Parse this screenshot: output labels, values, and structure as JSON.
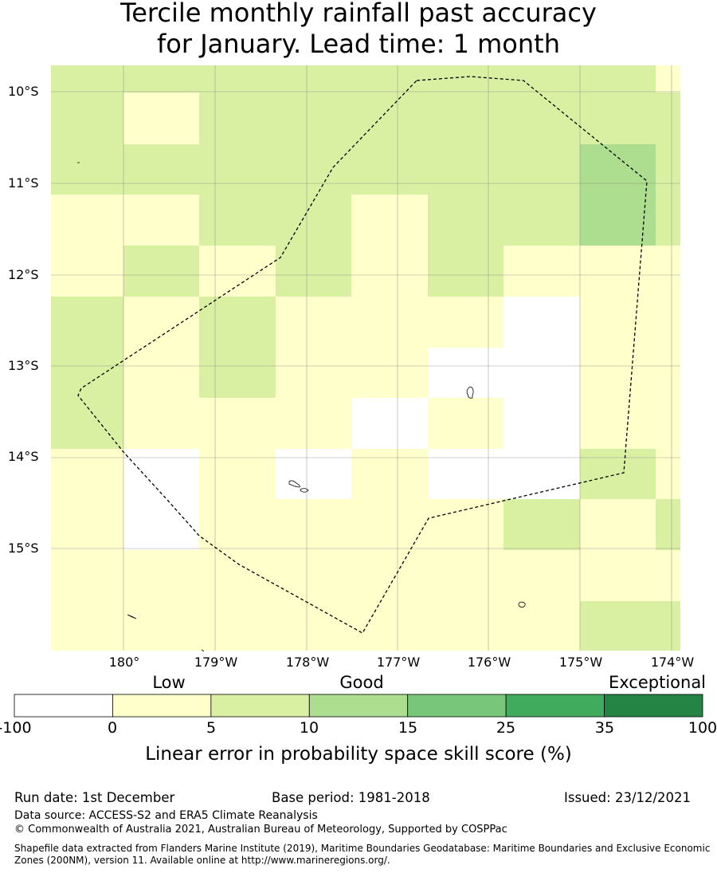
{
  "title": {
    "line1": "Tercile monthly rainfall past accuracy",
    "line2": "for January. Lead time: 1 month"
  },
  "map": {
    "lat_labels": [
      "10°S",
      "11°S",
      "12°S",
      "13°S",
      "14°S",
      "15°S"
    ],
    "lon_labels": [
      "180°",
      "179°W",
      "178°W",
      "177°W",
      "176°W",
      "175°W",
      "174°W"
    ],
    "boundary_name": "Maritime boundary (EEZ) outline"
  },
  "colorbar": {
    "category_labels": [
      "Low",
      "Good",
      "Exceptional"
    ],
    "tick_labels": [
      "-100",
      "0",
      "5",
      "10",
      "15",
      "25",
      "35",
      "100"
    ],
    "colors": [
      "#ffffff",
      "#ffffcc",
      "#d9f0a3",
      "#addd8e",
      "#78c679",
      "#41ab5d",
      "#238443"
    ],
    "label": "Linear error in probability space skill score (%)"
  },
  "footer": {
    "run_date": "Run date: 1st December",
    "base_period": "Base period: 1981-2018",
    "issued": "Issued: 23/12/2021",
    "data_source": "Data source: ACCESS-S2 and ERA5 Climate Reanalysis",
    "copyright": "© Commonwealth of Australia 2021, Australian Bureau of Meteorology, Supported by COSPPac",
    "shapefile_line1": "Shapefile data extracted from Flanders Marine Institute (2019), Maritime Boundaries Geodatabase: Maritime Boundaries and Exclusive Economic",
    "shapefile_line2": "Zones (200NM), version 11. Available online at http://www.marineregions.org/."
  }
}
